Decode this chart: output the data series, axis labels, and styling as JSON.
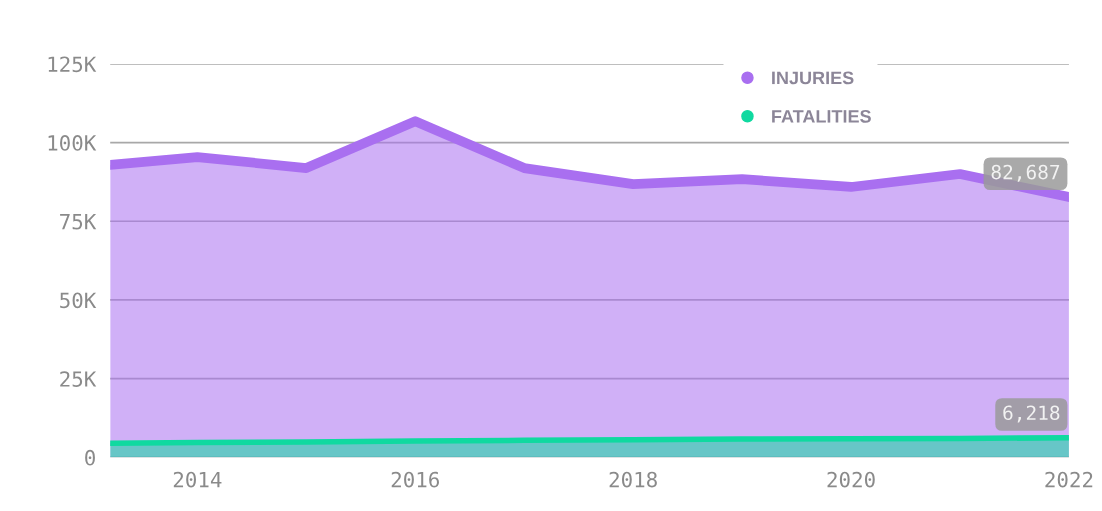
{
  "chart_data": {
    "type": "area",
    "x": [
      2013.2,
      2014,
      2015,
      2016,
      2017,
      2018,
      2019,
      2020,
      2021,
      2022
    ],
    "series": [
      {
        "name": "INJURIES",
        "color": "#a96ff0",
        "values": [
          92900,
          95400,
          91900,
          106800,
          91900,
          86800,
          88400,
          85900,
          90000,
          82687
        ],
        "value_labels": [
          null,
          null,
          null,
          null,
          null,
          null,
          null,
          null,
          null,
          "82,687"
        ]
      },
      {
        "name": "FATALITIES",
        "color": "#10d9a0",
        "values": [
          4500,
          4700,
          4900,
          5200,
          5400,
          5600,
          5800,
          5900,
          6000,
          6218
        ],
        "value_labels": [
          null,
          null,
          null,
          null,
          null,
          null,
          null,
          null,
          null,
          "6,218"
        ]
      }
    ],
    "xlim": [
      2013.2,
      2022
    ],
    "xticks": [
      2014,
      2016,
      2018,
      2020,
      2022
    ],
    "ylim": [
      0,
      125000
    ],
    "yticks": [
      {
        "value": 0,
        "label": "0"
      },
      {
        "value": 25000,
        "label": "25K"
      },
      {
        "value": 50000,
        "label": "50K"
      },
      {
        "value": 75000,
        "label": "75K"
      },
      {
        "value": 100000,
        "label": "100K"
      },
      {
        "value": 125000,
        "label": "125K"
      }
    ],
    "grid": "y",
    "legend": "top",
    "marker": "none",
    "line_style": "solid"
  }
}
